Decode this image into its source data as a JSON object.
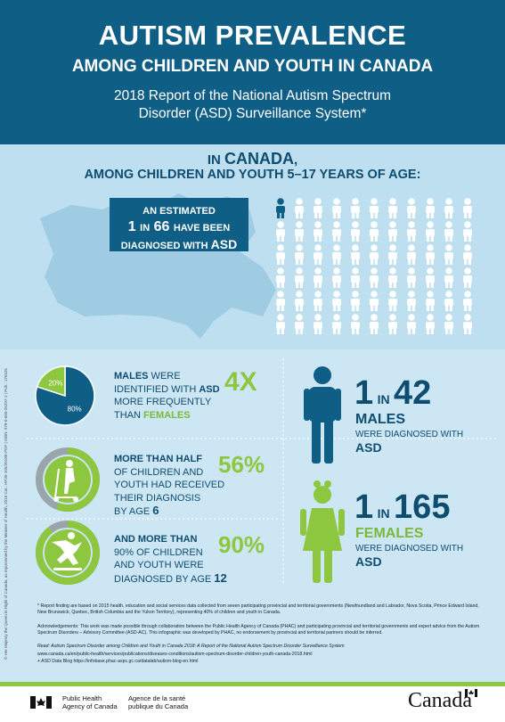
{
  "header": {
    "title": "AUTISM PREVALENCE",
    "subtitle": "AMONG CHILDREN AND YOUTH IN CANADA",
    "report_line1": "2018 Report of the National Autism Spectrum",
    "report_line2": "Disorder (ASD) Surveillance System*"
  },
  "intro": {
    "line1_prefix": "IN ",
    "line1_emph": "CANADA",
    "line1_suffix": ",",
    "line2": "AMONG CHILDREN AND YOUTH 5–17 YEARS OF AGE:"
  },
  "estimate": {
    "line1": "AN ESTIMATED",
    "num1": "1",
    "in": "IN",
    "num2": "66",
    "line2_suffix": "HAVE BEEN",
    "line3_prefix": "DIAGNOSED WITH",
    "line3_emph": "ASD"
  },
  "pie": {
    "chart_data": {
      "type": "pie",
      "categories": [
        "Males",
        "Females"
      ],
      "values": [
        80,
        20
      ],
      "labels": [
        "80%",
        "20%"
      ]
    },
    "colors": {
      "males": "#0f5e86",
      "females": "#8dc63f"
    }
  },
  "males_stat": {
    "l1_emph": "MALES",
    "l1_rest": " WERE",
    "l2_prefix": "IDENTIFIED WITH ",
    "l2_emph": "ASD",
    "l3": "MORE FREQUENTLY",
    "l4_prefix": "THAN ",
    "l4_emph": "FEMALES",
    "ratio": "4X"
  },
  "half_stat": {
    "l1": "MORE THAN HALF",
    "l2": "OF CHILDREN AND",
    "l3": "YOUTH HAD RECEIVED",
    "l4": "THEIR DIAGNOSIS",
    "l5_prefix": "BY AGE ",
    "l5_emph": "6",
    "percent": "56%",
    "value": 56
  },
  "ninety_stat": {
    "l1": "AND MORE THAN",
    "l2": "90% OF CHILDREN",
    "l3": "AND YOUTH WERE",
    "l4_prefix": "DIAGNOSED BY AGE ",
    "l4_emph": "12",
    "percent": "90%",
    "value": 90
  },
  "male_rate": {
    "num1": "1",
    "in": "IN",
    "num2": "42",
    "group": "MALES",
    "l2": "WERE DIAGNOSED WITH",
    "l3": "ASD"
  },
  "female_rate": {
    "num1": "1",
    "in": "IN",
    "num2": "165",
    "group": "FEMALES",
    "l2": "WERE DIAGNOSED WITH",
    "l3": "ASD"
  },
  "footnotes": {
    "f1": "* Report finding are based on 2015 health, education and social services data collected from seven participating provincial and territorial governments (Newfoundland and Labrador, Nova Scotia, Prince Edward Island, New Brunswick, Quebec, British Columbia and the Yukon Territory), representing 40% of children and youth in Canada.",
    "f2": "Acknowledgements: This work was made possible through collaboration between the Public Health Agency of Canada (PHAC) and participating provincial and territorial governments and expert advice from the Autism Spectrum Disorders – Advisory Committee (ASD-AC). This infographic was developed by PHAC, no endorsement by provincial and territorial partners should be inferred.",
    "f3": "Read: Autism Spectrum Disorder among Children and Youth in Canada 2018: A Report of the National Autism Spectrum Disorder Surveillance System",
    "f4": "www.canada.ca/en/public-health/services/publications/diseases-conditions/autism-spectrum-disorder-children-youth-canada-2018.html",
    "f5": "+ ASD Data Blog https://infobase.phac-aspc.gc.ca/datalab/autism-blog-en.html"
  },
  "side_text": "© Her Majesty the Queen in Right of Canada, as represented by the Minister of Health, 2018   Cat.: HP35-105/2018E-PDF | ISBN: 978-0-660-25297-1 | Pub.: 170425",
  "footer": {
    "agency_en_1": "Public Health",
    "agency_en_2": "Agency of Canada",
    "agency_fr_1": "Agence de la santé",
    "agency_fr_2": "publique du Canada",
    "wordmark": "Canada"
  }
}
